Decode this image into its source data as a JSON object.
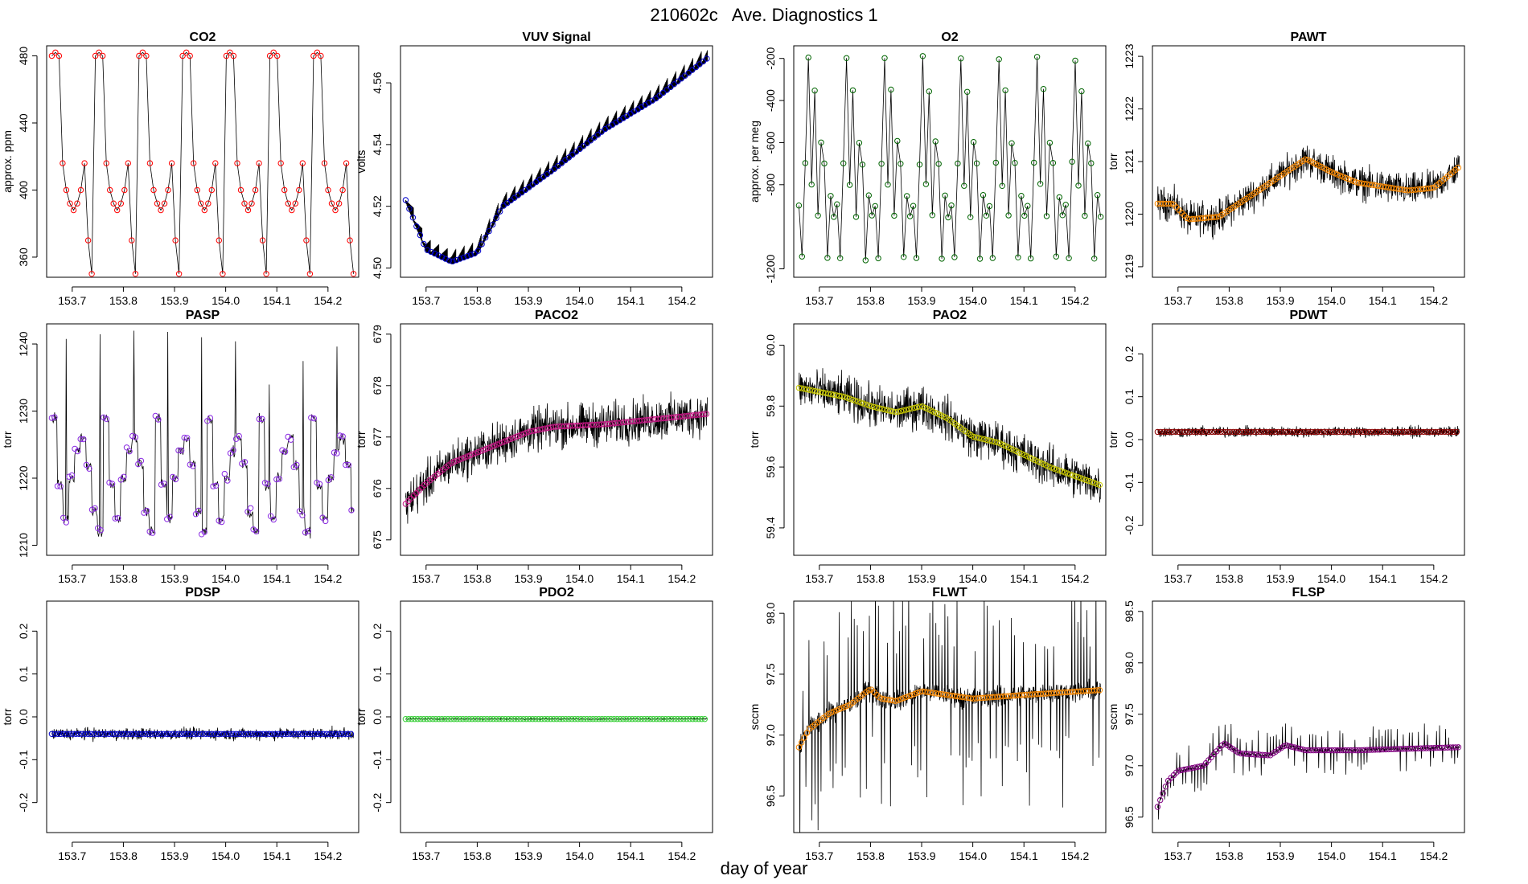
{
  "figure": {
    "title": "210602c   Ave. Diagnostics 1",
    "xlabel": "day of year"
  },
  "chart_data": [
    {
      "type": "line",
      "title": "CO2",
      "ylabel": "approx. ppm",
      "xlim": [
        153.65,
        154.26
      ],
      "ylim": [
        348,
        486
      ],
      "xticks": [
        "153.7",
        "153.8",
        "153.9",
        "154.0",
        "154.1",
        "154.2"
      ],
      "yticks": [
        "360",
        "400",
        "440",
        "480"
      ],
      "marker_color": "#ff0000",
      "pattern": "co2",
      "x_range": [
        153.66,
        154.25
      ],
      "base": 395,
      "noise": 0
    },
    {
      "type": "line",
      "title": "VUV Signal",
      "ylabel": "volts",
      "xlim": [
        153.65,
        154.26
      ],
      "ylim": [
        4.497,
        4.572
      ],
      "xticks": [
        "153.7",
        "153.8",
        "153.9",
        "154.0",
        "154.1",
        "154.2"
      ],
      "yticks": [
        "4.50",
        "4.52",
        "4.54",
        "4.56"
      ],
      "marker_color": "#0000cc",
      "pattern": "vuv",
      "x_range": [
        153.66,
        154.25
      ],
      "trend": [
        [
          153.66,
          4.522
        ],
        [
          153.7,
          4.506
        ],
        [
          153.75,
          4.502
        ],
        [
          153.8,
          4.505
        ],
        [
          153.85,
          4.52
        ],
        [
          153.95,
          4.532
        ],
        [
          154.05,
          4.545
        ],
        [
          154.15,
          4.555
        ],
        [
          154.25,
          4.568
        ]
      ],
      "noise": 0.004
    },
    {
      "type": "line",
      "title": "O2",
      "ylabel": "approx. per meg",
      "xlim": [
        153.65,
        154.26
      ],
      "ylim": [
        -1240,
        -140
      ],
      "xticks": [
        "153.7",
        "153.8",
        "153.9",
        "154.0",
        "154.1",
        "154.2"
      ],
      "yticks": [
        "-1200",
        "-800",
        "-600",
        "-400",
        "-200"
      ],
      "marker_color": "#006400",
      "pattern": "o2",
      "x_range": [
        153.66,
        154.25
      ],
      "noise": 0
    },
    {
      "type": "line",
      "title": "PAWT",
      "ylabel": "torr",
      "xlim": [
        153.65,
        154.26
      ],
      "ylim": [
        1218.8,
        1223.2
      ],
      "xticks": [
        "153.7",
        "153.8",
        "153.9",
        "154.0",
        "154.1",
        "154.2"
      ],
      "yticks": [
        "1219",
        "1220",
        "1221",
        "1222",
        "1223"
      ],
      "marker_color": "#ff8c00",
      "pattern": "trend",
      "x_range": [
        153.66,
        154.25
      ],
      "trend": [
        [
          153.66,
          1220.2
        ],
        [
          153.69,
          1220.2
        ],
        [
          153.72,
          1219.9
        ],
        [
          153.78,
          1219.95
        ],
        [
          153.85,
          1220.4
        ],
        [
          153.95,
          1221.05
        ],
        [
          154.0,
          1220.8
        ],
        [
          154.05,
          1220.6
        ],
        [
          154.15,
          1220.45
        ],
        [
          154.2,
          1220.5
        ],
        [
          154.25,
          1220.9
        ]
      ],
      "noise": 0.45
    },
    {
      "type": "line",
      "title": "PASP",
      "ylabel": "torr",
      "xlim": [
        153.65,
        154.26
      ],
      "ylim": [
        1208.5,
        1243
      ],
      "xticks": [
        "153.7",
        "153.8",
        "153.9",
        "154.0",
        "154.1",
        "154.2"
      ],
      "yticks": [
        "1210",
        "1220",
        "1230",
        "1240"
      ],
      "marker_color": "#8a2be2",
      "pattern": "pasp",
      "x_range": [
        153.66,
        154.25
      ],
      "noise": 0.8
    },
    {
      "type": "line",
      "title": "PACO2",
      "ylabel": "torr",
      "xlim": [
        153.65,
        154.26
      ],
      "ylim": [
        674.7,
        679.2
      ],
      "xticks": [
        "153.7",
        "153.8",
        "153.9",
        "154.0",
        "154.1",
        "154.2"
      ],
      "yticks": [
        "675",
        "676",
        "677",
        "678",
        "679"
      ],
      "marker_color": "#c71585",
      "pattern": "trend",
      "x_range": [
        153.66,
        154.25
      ],
      "trend": [
        [
          153.66,
          675.7
        ],
        [
          153.7,
          676.1
        ],
        [
          153.75,
          676.5
        ],
        [
          153.8,
          676.7
        ],
        [
          153.85,
          676.9
        ],
        [
          153.9,
          677.1
        ],
        [
          153.95,
          677.2
        ],
        [
          154.05,
          677.25
        ],
        [
          154.15,
          677.35
        ],
        [
          154.25,
          677.45
        ]
      ],
      "noise": 0.6
    },
    {
      "type": "line",
      "title": "PAO2",
      "ylabel": "torr",
      "xlim": [
        153.65,
        154.26
      ],
      "ylim": [
        59.31,
        60.07
      ],
      "xticks": [
        "153.7",
        "153.8",
        "153.9",
        "154.0",
        "154.1",
        "154.2"
      ],
      "yticks": [
        "59.4",
        "59.6",
        "59.8",
        "60.0"
      ],
      "marker_color": "#cccc00",
      "pattern": "trend",
      "x_range": [
        153.66,
        154.25
      ],
      "trend": [
        [
          153.66,
          59.86
        ],
        [
          153.75,
          59.83
        ],
        [
          153.8,
          59.8
        ],
        [
          153.85,
          59.78
        ],
        [
          153.9,
          59.8
        ],
        [
          153.95,
          59.76
        ],
        [
          154.0,
          59.7
        ],
        [
          154.05,
          59.68
        ],
        [
          154.1,
          59.64
        ],
        [
          154.15,
          59.6
        ],
        [
          154.2,
          59.57
        ],
        [
          154.25,
          59.54
        ]
      ],
      "noise": 0.1
    },
    {
      "type": "line",
      "title": "PDWT",
      "ylabel": "torr",
      "xlim": [
        153.65,
        154.26
      ],
      "ylim": [
        -0.27,
        0.27
      ],
      "xticks": [
        "153.7",
        "153.8",
        "153.9",
        "154.0",
        "154.1",
        "154.2"
      ],
      "yticks": [
        "-0.2",
        "-0.1",
        "0.0",
        "0.1",
        "0.2"
      ],
      "marker_color": "#8b0000",
      "pattern": "flat",
      "x_range": [
        153.66,
        154.25
      ],
      "base": 0.018,
      "noise": 0.018
    },
    {
      "type": "line",
      "title": "PDSP",
      "ylabel": "torr",
      "xlim": [
        153.65,
        154.26
      ],
      "ylim": [
        -0.27,
        0.27
      ],
      "xticks": [
        "153.7",
        "153.8",
        "153.9",
        "154.0",
        "154.1",
        "154.2"
      ],
      "yticks": [
        "-0.2",
        "-0.1",
        "0.0",
        "0.1",
        "0.2"
      ],
      "marker_color": "#0000cd",
      "pattern": "flat",
      "x_range": [
        153.66,
        154.25
      ],
      "base": -0.04,
      "noise": 0.02
    },
    {
      "type": "line",
      "title": "PDO2",
      "ylabel": "torr",
      "xlim": [
        153.65,
        154.26
      ],
      "ylim": [
        -0.27,
        0.27
      ],
      "xticks": [
        "153.7",
        "153.8",
        "153.9",
        "154.0",
        "154.1",
        "154.2"
      ],
      "yticks": [
        "-0.2",
        "-0.1",
        "0.0",
        "0.1",
        "0.2"
      ],
      "marker_color": "#32cd32",
      "pattern": "flat",
      "x_range": [
        153.66,
        154.25
      ],
      "base": -0.005,
      "noise": 0.002
    },
    {
      "type": "line",
      "title": "FLWT",
      "ylabel": "sccm",
      "xlim": [
        153.65,
        154.26
      ],
      "ylim": [
        96.2,
        98.1
      ],
      "xticks": [
        "153.7",
        "153.8",
        "153.9",
        "154.0",
        "154.1",
        "154.2"
      ],
      "yticks": [
        "96.5",
        "97.0",
        "97.5",
        "98.0"
      ],
      "marker_color": "#ff8c00",
      "pattern": "trend",
      "x_range": [
        153.66,
        154.25
      ],
      "trend": [
        [
          153.66,
          96.9
        ],
        [
          153.68,
          97.05
        ],
        [
          153.72,
          97.18
        ],
        [
          153.76,
          97.25
        ],
        [
          153.8,
          97.38
        ],
        [
          153.82,
          97.3
        ],
        [
          153.85,
          97.28
        ],
        [
          153.9,
          97.36
        ],
        [
          153.95,
          97.33
        ],
        [
          154.0,
          97.3
        ],
        [
          154.1,
          97.33
        ],
        [
          154.25,
          97.37
        ]
      ],
      "noise": 0.12,
      "spikes": true
    },
    {
      "type": "line",
      "title": "FLSP",
      "ylabel": "sccm",
      "xlim": [
        153.65,
        154.26
      ],
      "ylim": [
        96.35,
        98.6
      ],
      "xticks": [
        "153.7",
        "153.8",
        "153.9",
        "154.0",
        "154.1",
        "154.2"
      ],
      "yticks": [
        "96.5",
        "97.0",
        "97.5",
        "98.0",
        "98.5"
      ],
      "marker_color": "#800080",
      "pattern": "trend",
      "x_range": [
        153.66,
        154.25
      ],
      "trend": [
        [
          153.66,
          96.6
        ],
        [
          153.68,
          96.85
        ],
        [
          153.7,
          96.95
        ],
        [
          153.75,
          97.0
        ],
        [
          153.79,
          97.22
        ],
        [
          153.82,
          97.12
        ],
        [
          153.88,
          97.1
        ],
        [
          153.91,
          97.2
        ],
        [
          153.95,
          97.15
        ],
        [
          154.05,
          97.15
        ],
        [
          154.25,
          97.18
        ]
      ],
      "noise": 0.03,
      "spikes": true
    }
  ]
}
